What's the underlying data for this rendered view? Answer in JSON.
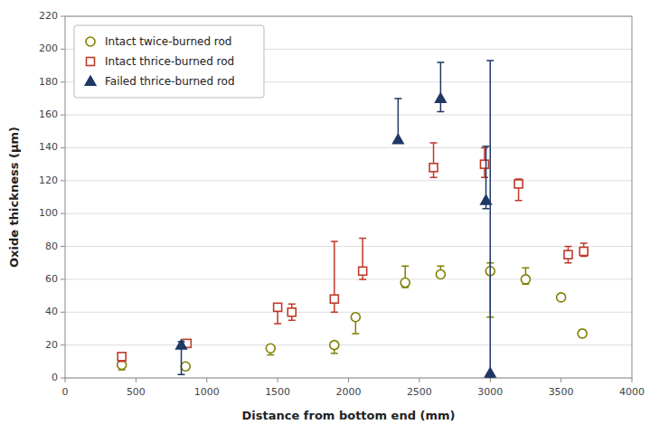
{
  "chart_data": {
    "type": "scatter",
    "xlabel": "Distance from bottom end (mm)",
    "ylabel": "Oxide thickness (μm)",
    "xlim": [
      0,
      4000
    ],
    "ylim": [
      0,
      220
    ],
    "xticks": [
      0,
      500,
      1000,
      1500,
      2000,
      2500,
      3000,
      3500,
      4000
    ],
    "yticks": [
      0,
      20,
      40,
      60,
      80,
      100,
      120,
      140,
      160,
      180,
      200,
      220
    ],
    "grid": "y",
    "legend": "upper left",
    "series": [
      {
        "name": "Intact twice-burned rod",
        "color": "#7f7f00",
        "marker": "circle-open",
        "x": [
          400,
          850,
          1450,
          1900,
          2050,
          2400,
          2650,
          3000,
          3250,
          3500,
          3650
        ],
        "values": [
          8,
          7,
          18,
          20,
          37,
          58,
          63,
          65,
          60,
          49,
          27
        ],
        "error_low": [
          3,
          2,
          4,
          5,
          10,
          3,
          1,
          28,
          3,
          1,
          2
        ],
        "error_high": [
          5,
          2,
          1,
          2,
          2,
          10,
          5,
          5,
          7,
          2,
          2
        ]
      },
      {
        "name": "Intact thrice-burned rod",
        "color": "#c0392b",
        "marker": "square-open",
        "x": [
          400,
          860,
          1500,
          1600,
          1900,
          2100,
          2600,
          2960,
          3200,
          3550,
          3660
        ],
        "values": [
          13,
          21,
          43,
          40,
          48,
          65,
          128,
          130,
          118,
          75,
          77
        ],
        "error_low": [
          3,
          2,
          10,
          5,
          8,
          5,
          6,
          8,
          10,
          5,
          3
        ],
        "error_high": [
          2,
          1,
          2,
          5,
          35,
          20,
          15,
          10,
          3,
          5,
          5
        ]
      },
      {
        "name": "Failed thrice-burned rod",
        "color": "#1f3864",
        "marker": "triangle",
        "x": [
          820,
          2350,
          2650,
          2970,
          3000
        ],
        "values": [
          20,
          145,
          170,
          108,
          3
        ],
        "error_low": [
          18,
          1,
          8,
          5,
          3
        ],
        "error_high": [
          2,
          25,
          22,
          33,
          190
        ]
      }
    ]
  }
}
